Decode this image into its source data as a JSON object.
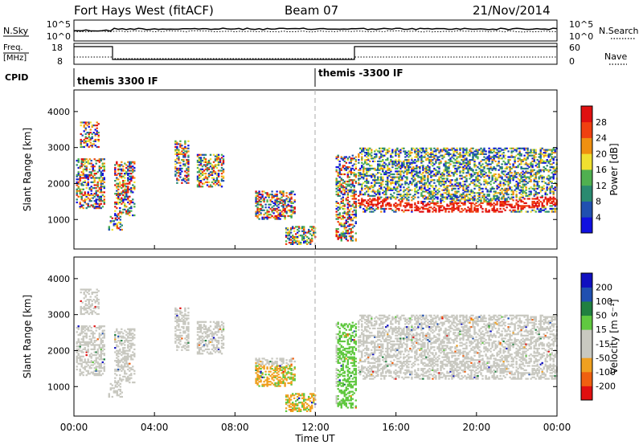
{
  "header": {
    "station": "Fort Hays West (fitACF)",
    "beam": "Beam 07",
    "date": "21/Nov/2014"
  },
  "panels": {
    "noise": {
      "left_label": "N.Sky",
      "right_label": "N.Search",
      "left_ticks": [
        "10^5",
        "10^0"
      ],
      "right_ticks": [
        "10^5",
        "10^0"
      ]
    },
    "freq": {
      "left_label_1": "Freq.",
      "left_label_2": "[MHz]",
      "right_label": "Nave",
      "left_ticks": [
        "18",
        "8"
      ],
      "right_ticks": [
        "60",
        "0"
      ]
    },
    "cpid": {
      "label": "CPID",
      "segments": [
        {
          "label": "themis 3300 IF",
          "start_hour": 0
        },
        {
          "label": "themis -3300 IF",
          "start_hour": 12
        }
      ]
    }
  },
  "chart_data": [
    {
      "type": "heatmap",
      "name": "power",
      "ylabel": "Slant Range [km]",
      "yticks": [
        1000,
        2000,
        3000,
        4000
      ],
      "ylim": [
        180,
        4600
      ],
      "xlim": [
        0,
        24
      ],
      "colorbar_label": "Power [dB]",
      "colorbar_ticks": [
        4,
        8,
        12,
        16,
        20,
        24,
        28
      ],
      "colorbar_colors": [
        "#1010e0",
        "#2050b0",
        "#2a8a70",
        "#50b050",
        "#f0e030",
        "#f09010",
        "#f04010",
        "#e01010"
      ]
    },
    {
      "type": "heatmap",
      "name": "velocity",
      "ylabel": "Slant Range [km]",
      "yticks": [
        1000,
        2000,
        3000,
        4000
      ],
      "ylim": [
        180,
        4600
      ],
      "xlim": [
        0,
        24
      ],
      "colorbar_label": "Velocity [m s⁻¹]",
      "colorbar_ticks": [
        -200,
        -100,
        -50,
        -15,
        15,
        50,
        100,
        200
      ],
      "colorbar_colors": [
        "#e01010",
        "#f06010",
        "#f0a020",
        "#c8c8c0",
        "#c8c8c0",
        "#60c840",
        "#208040",
        "#2050b0",
        "#1010c0"
      ]
    }
  ],
  "x_axis": {
    "ticks": [
      "00:00",
      "04:00",
      "08:00",
      "12:00",
      "16:00",
      "20:00",
      "00:00"
    ],
    "label": "Time UT"
  }
}
